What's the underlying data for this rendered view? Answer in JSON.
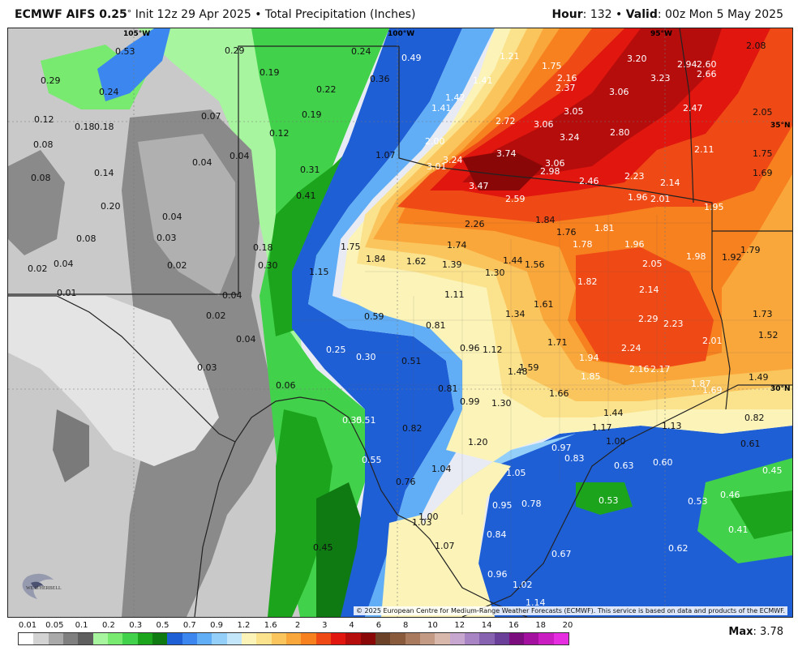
{
  "header": {
    "model": "ECMWF AIFS 0.25",
    "degree": "°",
    "init": "Init 12z 29 Apr 2025",
    "bullet": "•",
    "product": "Total Precipitation (Inches)",
    "hour_label": "Hour",
    "hour_value": ": 132",
    "valid_label": "Valid",
    "valid_value": ": 00z Mon 5 May 2025"
  },
  "map": {
    "grid_labels": [
      {
        "text": "105°W"
      },
      {
        "text": "100°W"
      },
      {
        "text": "95°W"
      },
      {
        "text": "35°N"
      },
      {
        "text": "30°N"
      }
    ],
    "values": [
      "0.53",
      "0.29",
      "0.24",
      "0.19",
      "0.36",
      "0.49",
      "1.21",
      "1.75",
      "3.20",
      "2.94",
      "2.60",
      "2.08",
      "0.29",
      "0.24",
      "0.22",
      "0.07",
      "2.16",
      "3.23",
      "2.66",
      "1.41",
      "2.37",
      "3.06",
      "0.12",
      "0.18",
      "0.18",
      "0.19",
      "1.42",
      "1.41",
      "3.05",
      "2.47",
      "2.05",
      "0.08",
      "0.12",
      "2.72",
      "3.06",
      "2.80",
      "1.07",
      "2.00",
      "3.74",
      "3.24",
      "2.11",
      "1.75",
      "0.08",
      "0.14",
      "0.04",
      "0.04",
      "3.24",
      "3.01",
      "3.06",
      "2.98",
      "0.31",
      "1.69",
      "0.20",
      "0.04",
      "0.41",
      "3.47",
      "2.46",
      "2.23",
      "2.14",
      "2.59",
      "1.96",
      "2.01",
      "1.95",
      "0.08",
      "0.03",
      "2.26",
      "1.84",
      "1.81",
      "1.76",
      "0.02",
      "0.04",
      "0.02",
      "0.18",
      "1.75",
      "1.74",
      "1.78",
      "1.96",
      "1.79",
      "0.30",
      "1.84",
      "1.62",
      "1.39",
      "1.44",
      "1.56",
      "1.98",
      "1.92",
      "2.05",
      "1.15",
      "1.30",
      "0.01",
      "0.04",
      "1.82",
      "2.14",
      "1.11",
      "0.02",
      "0.59",
      "1.34",
      "1.61",
      "1.73",
      "2.29",
      "2.23",
      "0.81",
      "1.52",
      "0.04",
      "0.96",
      "1.12",
      "1.71",
      "2.01",
      "0.25",
      "0.30",
      "0.51",
      "1.94",
      "2.24",
      "0.03",
      "1.59",
      "1.48",
      "2.16",
      "2.17",
      "1.85",
      "1.49",
      "0.06",
      "0.81",
      "1.87",
      "1.69",
      "1.66",
      "0.99",
      "1.30",
      "1.44",
      "0.82",
      "0.35",
      "0.51",
      "0.82",
      "1.17",
      "1.13",
      "1.20",
      "1.00",
      "0.61",
      "0.97",
      "0.55",
      "0.83",
      "0.63",
      "0.60",
      "1.04",
      "1.05",
      "0.45",
      "0.76",
      "0.46",
      "0.95",
      "0.78",
      "0.53",
      "0.53",
      "1.00",
      "1.03",
      "0.84",
      "0.41",
      "0.45",
      "1.07",
      "0.67",
      "0.62",
      "0.96",
      "1.02",
      "1.14"
    ],
    "copyright": "© 2025 European Centre for Medium-Range Weather Forecasts (ECMWF). This service is based on data and products of the ECMWF."
  },
  "legend": {
    "labels": [
      "0.01",
      "0.05",
      "0.1",
      "0.2",
      "0.3",
      "0.5",
      "0.7",
      "0.9",
      "1.2",
      "1.6",
      "2",
      "3",
      "4",
      "6",
      "8",
      "10",
      "12",
      "14",
      "16",
      "18",
      "20"
    ],
    "colors": [
      "#ffffff",
      "#d3d3d3",
      "#a9a9a9",
      "#7f7f7f",
      "#5e5e5e",
      "#a8f5a0",
      "#77ea6f",
      "#42d14a",
      "#1da41d",
      "#0f7a12",
      "#1f5fd6",
      "#3b86ef",
      "#61aef6",
      "#93cff9",
      "#c3e6fb",
      "#fbf3b8",
      "#fbe28c",
      "#fbc55e",
      "#f9a73a",
      "#f7801f",
      "#ef4a16",
      "#e0160f",
      "#b50c0c",
      "#8a0707",
      "#6b4128",
      "#8a5a3d",
      "#a97a5e",
      "#c39a84",
      "#d9b8ac",
      "#c7a6cf",
      "#a884c4",
      "#8762b1",
      "#6a3f99",
      "#7c0d7f",
      "#a3109f",
      "#c91cc1",
      "#e62ee0"
    ],
    "max_label": "Max",
    "max_value": ": 3.78"
  }
}
